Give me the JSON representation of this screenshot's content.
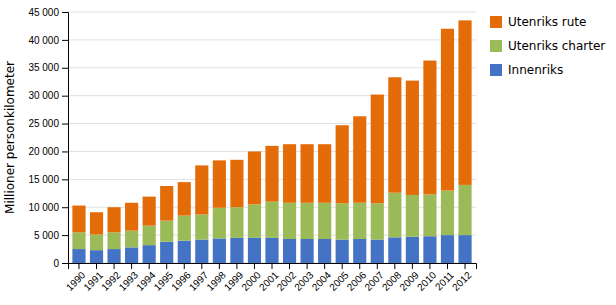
{
  "chart_data": {
    "type": "bar",
    "stacked": true,
    "categories": [
      "1990",
      "1991",
      "1992",
      "1993",
      "1994",
      "1995",
      "1996",
      "1997",
      "1998",
      "1999",
      "2000",
      "2001",
      "2002",
      "2003",
      "2004",
      "2005",
      "2006",
      "2007",
      "2008",
      "2009",
      "2010",
      "2011",
      "2012"
    ],
    "series": [
      {
        "name": "Innenriks",
        "color": "#4472C4",
        "values": [
          2500,
          2300,
          2500,
          2800,
          3200,
          3800,
          4000,
          4200,
          4400,
          4500,
          4500,
          4500,
          4300,
          4300,
          4300,
          4200,
          4300,
          4200,
          4600,
          4700,
          4800,
          5000,
          5000
        ]
      },
      {
        "name": "Utenriks charter",
        "color": "#9BBB59",
        "values": [
          3000,
          2800,
          3000,
          3000,
          3500,
          3800,
          4500,
          4500,
          5500,
          5500,
          6000,
          6500,
          6500,
          6500,
          6500,
          6500,
          6500,
          6500,
          8000,
          7500,
          7500,
          8000,
          9000
        ]
      },
      {
        "name": "Utenriks rute",
        "color": "#E36C09",
        "values": [
          4800,
          4000,
          4500,
          5000,
          5200,
          6200,
          6000,
          8800,
          8500,
          8500,
          9500,
          10000,
          10500,
          10500,
          10500,
          14000,
          15500,
          19500,
          20700,
          20500,
          24000,
          29000,
          29500
        ]
      }
    ],
    "y_label": "Millioner personkilometer",
    "ylim": [
      0,
      45000
    ],
    "yticks": [
      0,
      {
        "value": 5000,
        "label": "5 000"
      },
      {
        "value": 10000,
        "label": "10 000"
      },
      {
        "value": 15000,
        "label": "15 000"
      },
      {
        "value": 20000,
        "label": "20 000"
      },
      {
        "value": 25000,
        "label": "25 000"
      },
      {
        "value": 30000,
        "label": "30 000"
      },
      {
        "value": 35000,
        "label": "35 000"
      },
      {
        "value": 40000,
        "label": "40 000"
      },
      {
        "value": 45000,
        "label": "45 000"
      }
    ],
    "grid": true,
    "legend": "right"
  }
}
